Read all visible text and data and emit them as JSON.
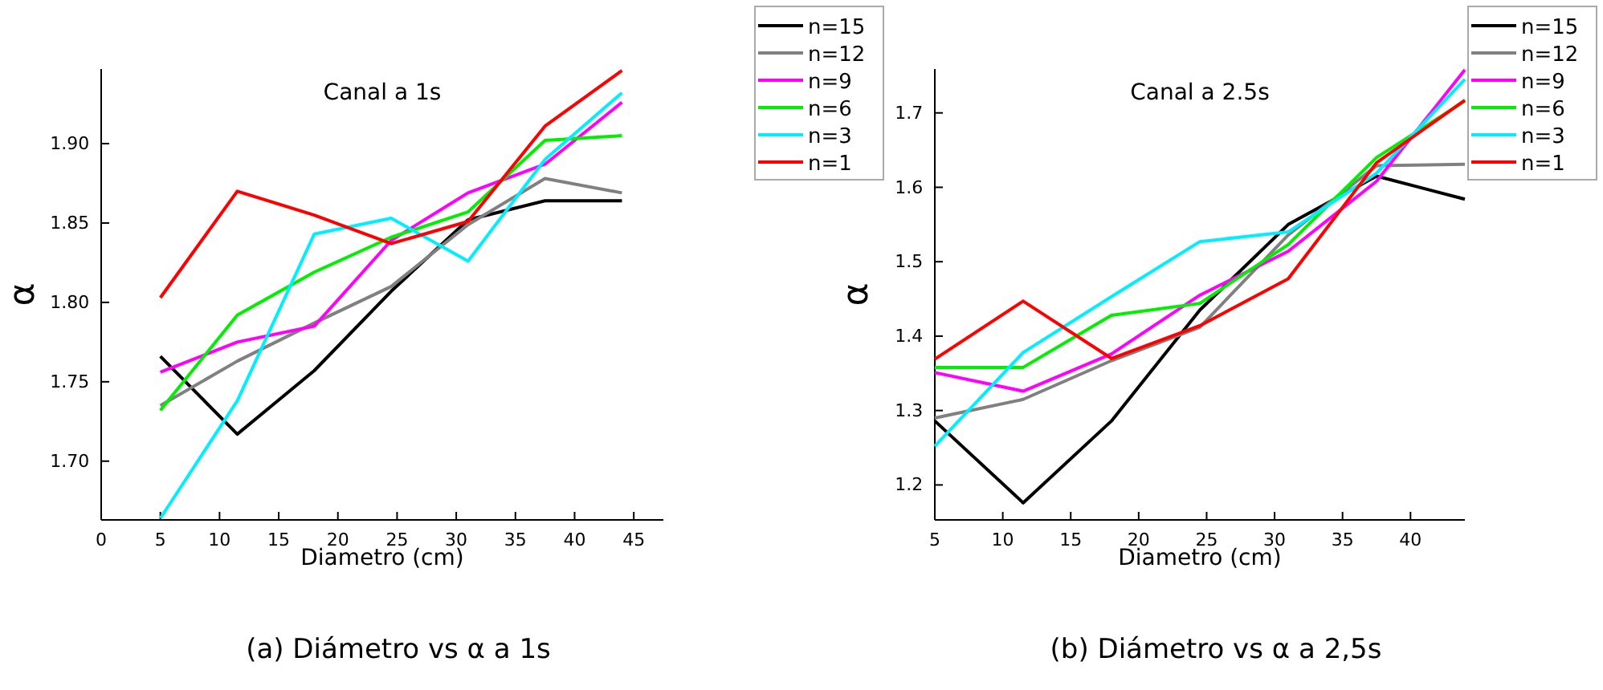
{
  "chart_data": [
    {
      "type": "line",
      "title": "Canal a 1s",
      "xlabel": "Diametro (cm)",
      "ylabel": "α",
      "annotations": [
        "(a) Diámetro vs α a 1s"
      ],
      "legend": "top right",
      "grid": false,
      "x": [
        5,
        11.5,
        18,
        24.5,
        31,
        37.5,
        44
      ],
      "xlim": [
        0,
        47.5
      ],
      "xticks": [
        0,
        5,
        10,
        15,
        20,
        25,
        30,
        35,
        40,
        45
      ],
      "ylim": [
        1.663,
        1.947
      ],
      "yticks": [
        {
          "value": 1.7,
          "label": "1.70"
        },
        {
          "value": 1.75,
          "label": "1.75"
        },
        {
          "value": 1.8,
          "label": "1.80"
        },
        {
          "value": 1.85,
          "label": "1.85"
        },
        {
          "value": 1.9,
          "label": "1.90"
        }
      ],
      "series": [
        {
          "name": "n=15",
          "color": "#000000",
          "values": [
            1.766,
            1.717,
            1.757,
            1.807,
            1.852,
            1.864,
            1.864
          ]
        },
        {
          "name": "n=12",
          "color": "#808080",
          "values": [
            1.735,
            1.763,
            1.787,
            1.81,
            1.849,
            1.878,
            1.869
          ]
        },
        {
          "name": "n=9",
          "color": "#ff00ff",
          "values": [
            1.756,
            1.775,
            1.785,
            1.839,
            1.869,
            1.887,
            1.926
          ]
        },
        {
          "name": "n=6",
          "color": "#00ee00",
          "values": [
            1.732,
            1.792,
            1.819,
            1.841,
            1.857,
            1.902,
            1.905
          ]
        },
        {
          "name": "n=3",
          "color": "#00eeff",
          "values": [
            1.664,
            1.738,
            1.843,
            1.853,
            1.826,
            1.89,
            1.932
          ]
        },
        {
          "name": "n=1",
          "color": "#ff0000",
          "values": [
            1.803,
            1.87,
            1.855,
            1.837,
            1.851,
            1.911,
            1.946
          ]
        }
      ]
    },
    {
      "type": "line",
      "title": "Canal a 2.5s",
      "xlabel": "Diametro (cm)",
      "ylabel": "α",
      "annotations": [
        "(b) Diámetro vs α a 2,5s"
      ],
      "legend": "top right",
      "grid": false,
      "x": [
        5,
        11.5,
        18,
        24.5,
        31,
        37.5,
        44
      ],
      "xlim": [
        5,
        44
      ],
      "xticks": [
        5,
        10,
        15,
        20,
        25,
        30,
        35,
        40
      ],
      "ylim": [
        1.153,
        1.759
      ],
      "yticks": [
        1.2,
        1.3,
        1.4,
        1.5,
        1.6,
        1.7
      ],
      "series": [
        {
          "name": "n=15",
          "color": "#000000",
          "values": [
            1.286,
            1.176,
            1.286,
            1.435,
            1.55,
            1.615,
            1.584
          ]
        },
        {
          "name": "n=12",
          "color": "#808080",
          "values": [
            1.29,
            1.315,
            1.367,
            1.412,
            1.536,
            1.629,
            1.631
          ]
        },
        {
          "name": "n=9",
          "color": "#ff00ff",
          "values": [
            1.351,
            1.326,
            1.376,
            1.455,
            1.514,
            1.608,
            1.758
          ]
        },
        {
          "name": "n=6",
          "color": "#00ee00",
          "values": [
            1.358,
            1.358,
            1.428,
            1.444,
            1.523,
            1.64,
            1.716
          ]
        },
        {
          "name": "n=3",
          "color": "#00eeff",
          "values": [
            1.252,
            1.378,
            1.453,
            1.527,
            1.54,
            1.619,
            1.745
          ]
        },
        {
          "name": "n=1",
          "color": "#ff0000",
          "values": [
            1.369,
            1.447,
            1.37,
            1.414,
            1.477,
            1.633,
            1.717
          ]
        }
      ]
    }
  ]
}
